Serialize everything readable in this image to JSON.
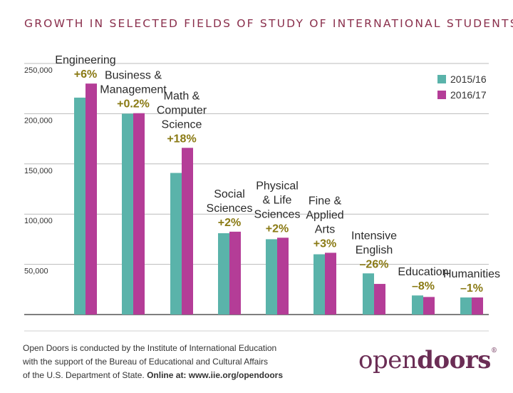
{
  "chart_data": {
    "type": "bar",
    "title": "GROWTH IN SELECTED FIELDS OF STUDY OF INTERNATIONAL STUDENTS",
    "categories": [
      [
        "Engineering"
      ],
      [
        "Business &",
        "Management"
      ],
      [
        "Math &",
        "Computer",
        "Science"
      ],
      [
        "Social",
        "Sciences"
      ],
      [
        "Physical",
        "& Life",
        "Sciences"
      ],
      [
        "Fine &",
        "Applied",
        "Arts"
      ],
      [
        "Intensive",
        "English"
      ],
      [
        "Education"
      ],
      [
        "Humanities"
      ]
    ],
    "changes": [
      "+6%",
      "+0.2%",
      "+18%",
      "+2%",
      "+2%",
      "+3%",
      "–26%",
      "–8%",
      "–1%"
    ],
    "series": [
      {
        "name": "2015/16",
        "color": "#5ab3aa",
        "values": [
          216000,
          200000,
          141000,
          81000,
          75000,
          60000,
          41000,
          19000,
          17000
        ]
      },
      {
        "name": "2016/17",
        "color": "#b43d97",
        "values": [
          230000,
          200500,
          166000,
          82500,
          76500,
          61500,
          30500,
          17500,
          17000
        ]
      }
    ],
    "y_ticks": [
      "50,000",
      "100,000",
      "150,000",
      "200,000",
      "250,000"
    ],
    "y_tick_values": [
      50000,
      100000,
      150000,
      200000,
      250000
    ],
    "ylim": [
      0,
      250000
    ],
    "grid": true,
    "legend_position": "top-right"
  },
  "footer": {
    "line1": "Open Doors is conducted by the Institute of International Education",
    "line2": "with the support of the Bureau of Educational and Cultural Affairs",
    "line3_plain": "of the U.S. Department of State. ",
    "line3_bold": "Online at: www.iie.org/opendoors"
  },
  "logo": {
    "part1": "open",
    "part2": "doors",
    "mark": "®"
  },
  "colors": {
    "title": "#8a2f4c",
    "change_label": "#8a7a14",
    "grid": "#bbbbbb",
    "logo": "#6b2d55"
  }
}
